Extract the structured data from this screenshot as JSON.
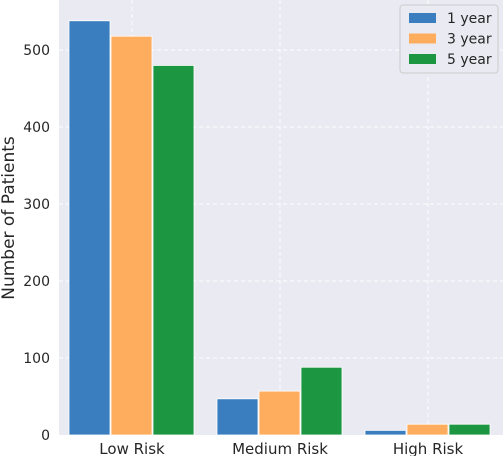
{
  "chart_data": {
    "type": "bar",
    "title": "",
    "xlabel": "",
    "ylabel": "Number of Patients",
    "categories": [
      "Low Risk",
      "Medium Risk",
      "High Risk"
    ],
    "series": [
      {
        "name": "1 year",
        "values": [
          538,
          47,
          6
        ],
        "color": "#3a7ebf"
      },
      {
        "name": "3 year",
        "values": [
          518,
          57,
          14
        ],
        "color": "#fdad5d"
      },
      {
        "name": "5 year",
        "values": [
          480,
          88,
          14
        ],
        "color": "#1d9641"
      }
    ],
    "ylim": [
      0,
      565
    ],
    "yticks": [
      0,
      100,
      200,
      300,
      400,
      500
    ],
    "grid": true,
    "legend_position": "top-right",
    "plot_background": "#eaeaf2"
  }
}
